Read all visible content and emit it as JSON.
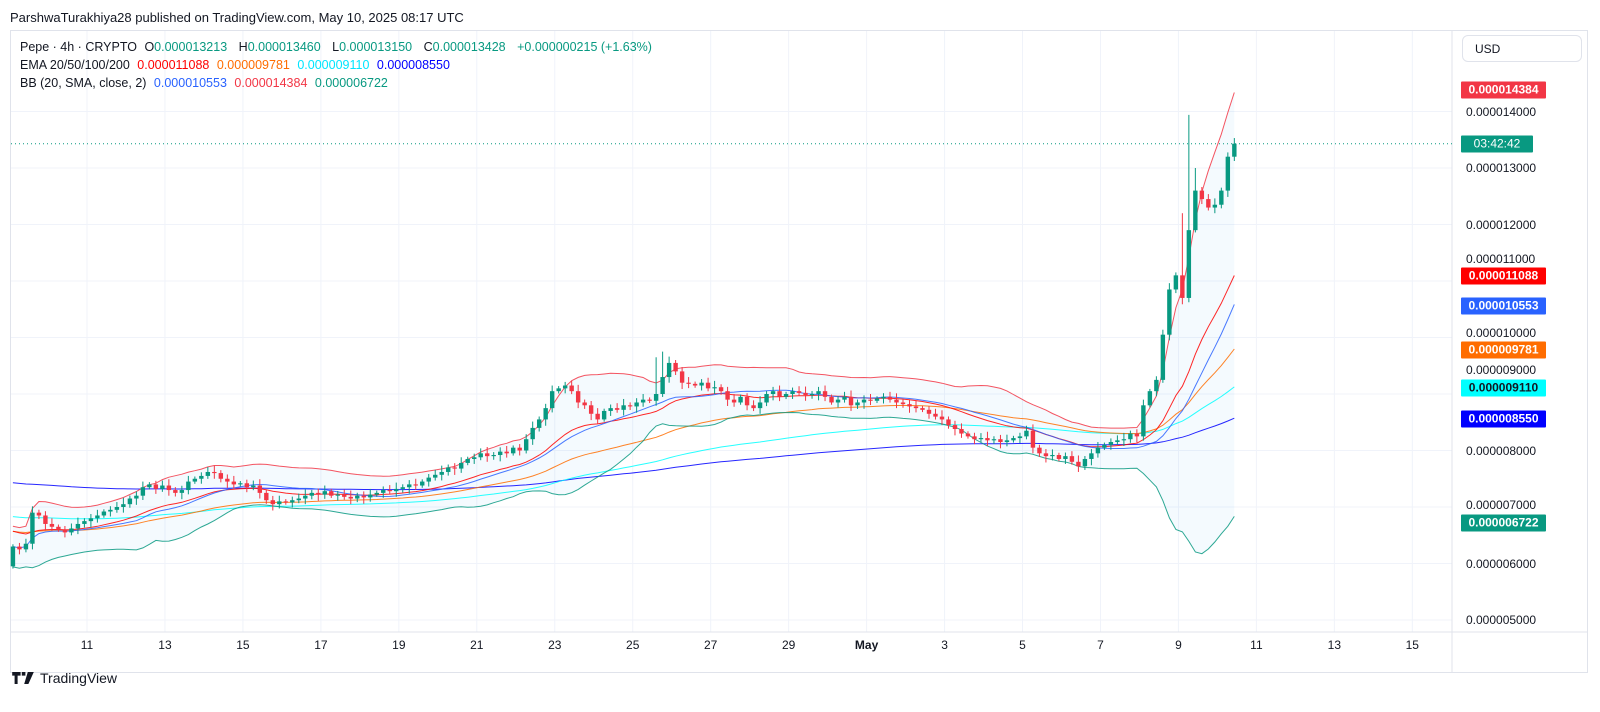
{
  "publisher": "ParshwaTurakhiya28 published on TradingView.com, May 10, 2025 08:17 UTC",
  "legend": {
    "symbol": "Pepe · 4h · CRYPTO",
    "o_label": "O",
    "o": "0.000013213",
    "h_label": "H",
    "h": "0.000013460",
    "l_label": "L",
    "l": "0.000013150",
    "c_label": "C",
    "c": "0.000013428",
    "change": "+0.000000215 (+1.63%)",
    "ema_label": "EMA 20/50/100/200",
    "ema20": "0.000011088",
    "ema50": "0.000009781",
    "ema100": "0.000009110",
    "ema200": "0.000008550",
    "bb_label": "BB (20, SMA, close, 2)",
    "bb_basis": "0.000010553",
    "bb_upper": "0.000014384",
    "bb_lower": "0.000006722"
  },
  "currency": "USD",
  "logo_text": "TradingView",
  "colors": {
    "up": "#089981",
    "down": "#f23645",
    "ema20": "#ff0000",
    "ema50": "#ff6d00",
    "ema100": "#00ffff",
    "ema200": "#0000ff",
    "bb_basis": "#2962ff",
    "bb_upper": "#f23645",
    "bb_lower": "#089981",
    "bb_fill": "rgba(33,150,243,0.05)"
  },
  "chart_data": {
    "type": "candlestick",
    "title": "Pepe · 4h · CRYPTO",
    "unit_note": "prices in units of 0.000001 USD",
    "ylim": [
      4.6,
      15.2
    ],
    "x_unit": "days since Apr 11",
    "first_candle_offset_days": -1.9,
    "candle_days": 0.16667,
    "first_open": 5.95,
    "closes": [
      6.3,
      6.25,
      6.35,
      6.9,
      6.85,
      6.7,
      6.65,
      6.6,
      6.55,
      6.62,
      6.7,
      6.75,
      6.8,
      6.85,
      6.92,
      6.95,
      7.0,
      7.05,
      7.15,
      7.2,
      7.35,
      7.4,
      7.32,
      7.38,
      7.3,
      7.25,
      7.3,
      7.45,
      7.5,
      7.55,
      7.62,
      7.6,
      7.5,
      7.45,
      7.4,
      7.42,
      7.35,
      7.38,
      7.25,
      7.12,
      7.05,
      7.1,
      7.08,
      7.12,
      7.15,
      7.2,
      7.25,
      7.22,
      7.28,
      7.2,
      7.22,
      7.18,
      7.15,
      7.2,
      7.17,
      7.22,
      7.25,
      7.3,
      7.28,
      7.32,
      7.35,
      7.4,
      7.38,
      7.45,
      7.52,
      7.57,
      7.62,
      7.7,
      7.68,
      7.78,
      7.85,
      7.88,
      7.95,
      7.9,
      7.92,
      7.98,
      7.95,
      8.05,
      8.0,
      8.2,
      8.4,
      8.55,
      8.75,
      9.05,
      9.1,
      9.15,
      9.05,
      8.85,
      8.8,
      8.65,
      8.55,
      8.7,
      8.75,
      8.72,
      8.8,
      8.78,
      8.85,
      8.9,
      8.88,
      9.0,
      9.3,
      9.55,
      9.4,
      9.2,
      9.18,
      9.15,
      9.2,
      9.1,
      9.12,
      9.05,
      8.9,
      8.85,
      8.95,
      8.8,
      8.75,
      8.85,
      9.0,
      9.05,
      8.95,
      9.0,
      9.05,
      9.02,
      8.98,
      9.0,
      9.05,
      8.95,
      8.85,
      8.9,
      8.95,
      8.8,
      8.85,
      8.9,
      8.88,
      8.92,
      8.95,
      8.9,
      8.85,
      8.82,
      8.78,
      8.75,
      8.72,
      8.65,
      8.6,
      8.55,
      8.45,
      8.38,
      8.3,
      8.25,
      8.2,
      8.22,
      8.18,
      8.2,
      8.15,
      8.18,
      8.22,
      8.25,
      8.35,
      8.05,
      7.95,
      7.9,
      7.92,
      7.85,
      7.9,
      7.8,
      7.72,
      7.85,
      7.95,
      8.05,
      8.1,
      8.15,
      8.18,
      8.2,
      8.3,
      8.25,
      8.8,
      9.05,
      9.25,
      10.05,
      10.85,
      11.1,
      10.7,
      11.9,
      12.6,
      12.45,
      12.3,
      12.35,
      12.6,
      13.2,
      13.43
    ],
    "high_overrides": [
      {
        "index": 180,
        "high": 12.2
      },
      {
        "index": 181,
        "high": 13.94
      },
      {
        "index": 182,
        "high": 13.0
      },
      {
        "index": 99,
        "high": 9.65
      },
      {
        "index": 100,
        "high": 9.75
      }
    ],
    "ema_seeds": {
      "ema20": 6.6,
      "ema50": 6.58,
      "ema100": 6.84,
      "ema200": 7.44
    },
    "price_ticks": [
      {
        "v": 14,
        "label": "0.000014000"
      },
      {
        "v": 13,
        "label": "0.000013000"
      },
      {
        "v": 12,
        "label": "0.000012000"
      },
      {
        "v": 11,
        "label": "0.000011000"
      },
      {
        "v": 10,
        "label": "0.000010000"
      },
      {
        "v": 9,
        "label": "0.000009000"
      },
      {
        "v": 8,
        "label": "0.000008000"
      },
      {
        "v": 7,
        "label": "0.000007000"
      },
      {
        "v": 6,
        "label": "0.000006000"
      },
      {
        "v": 5,
        "label": "0.000005000"
      }
    ],
    "date_ticks": [
      {
        "d": 0,
        "label": "11"
      },
      {
        "d": 2,
        "label": "13"
      },
      {
        "d": 4,
        "label": "15"
      },
      {
        "d": 6,
        "label": "17"
      },
      {
        "d": 8,
        "label": "19"
      },
      {
        "d": 10,
        "label": "21"
      },
      {
        "d": 12,
        "label": "23"
      },
      {
        "d": 14,
        "label": "25"
      },
      {
        "d": 16,
        "label": "27"
      },
      {
        "d": 18,
        "label": "29"
      },
      {
        "d": 20,
        "label": "May"
      },
      {
        "d": 22,
        "label": "3"
      },
      {
        "d": 24,
        "label": "5"
      },
      {
        "d": 26,
        "label": "7"
      },
      {
        "d": 28,
        "label": "9"
      },
      {
        "d": 30,
        "label": "11"
      },
      {
        "d": 32,
        "label": "13"
      },
      {
        "d": 34,
        "label": "15"
      }
    ],
    "badges": [
      {
        "name": "bb-upper-badge",
        "v": 14.384,
        "label": "0.000014384",
        "bg": "#f23645",
        "fg": "#ffffff"
      },
      {
        "name": "countdown-badge",
        "v": 13.428,
        "label": "03:42:42",
        "bg": "#089981",
        "fg": "#ffffff"
      },
      {
        "name": "ema20-badge",
        "v": 11.088,
        "label": "0.000011088",
        "bg": "#ff0000",
        "fg": "#ffffff"
      },
      {
        "name": "bb-basis-badge",
        "v": 10.553,
        "label": "0.000010553",
        "bg": "#2962ff",
        "fg": "#ffffff"
      },
      {
        "name": "ema50-badge",
        "v": 9.781,
        "label": "0.000009781",
        "bg": "#ff6d00",
        "fg": "#ffffff"
      },
      {
        "name": "ema100-badge",
        "v": 9.11,
        "label": "0.000009110",
        "bg": "#00ffff",
        "fg": "#131722"
      },
      {
        "name": "ema200-badge",
        "v": 8.55,
        "label": "0.000008550",
        "bg": "#0000ff",
        "fg": "#ffffff"
      },
      {
        "name": "bb-lower-badge",
        "v": 6.722,
        "label": "0.000006722",
        "bg": "#089981",
        "fg": "#ffffff"
      }
    ]
  }
}
